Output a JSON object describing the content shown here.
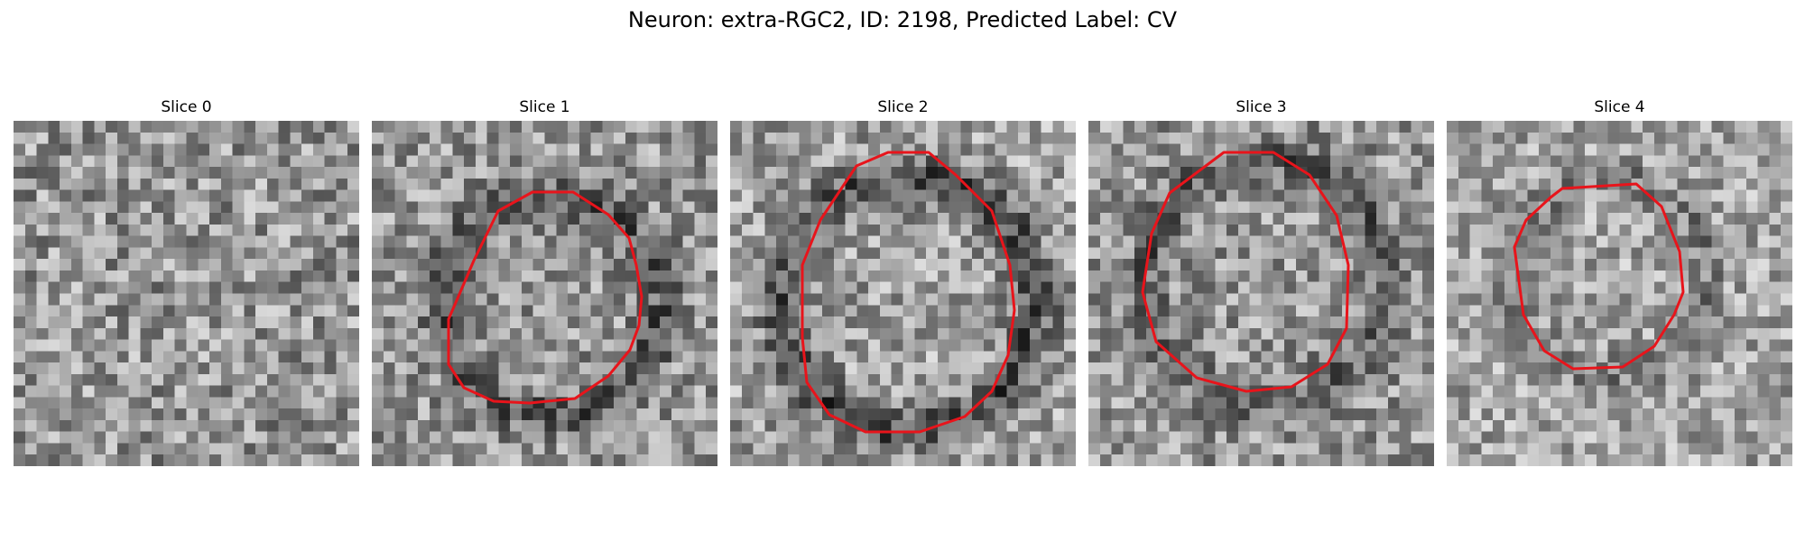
{
  "figure": {
    "title": "Neuron: extra-RGC2, ID: 2198, Predicted Label: CV"
  },
  "colors": {
    "contour": "#e8141b",
    "background": "#ffffff"
  },
  "panels": [
    {
      "label": "Slice 0",
      "has_contour": false
    },
    {
      "label": "Slice 1",
      "has_contour": true
    },
    {
      "label": "Slice 2",
      "has_contour": true
    },
    {
      "label": "Slice 3",
      "has_contour": true
    },
    {
      "label": "Slice 4",
      "has_contour": true
    }
  ]
}
